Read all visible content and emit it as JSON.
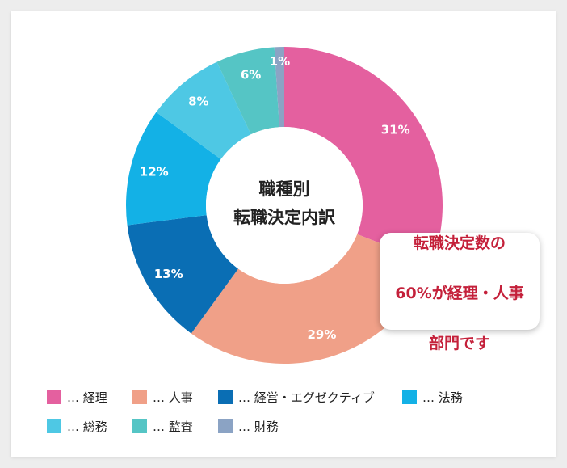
{
  "chart_data": {
    "type": "pie",
    "style": "donut",
    "center_label": [
      "職種別",
      "転職決定内訳"
    ],
    "slices": [
      {
        "name": "経理",
        "value": 31,
        "label": "31%",
        "color": "#e4609f"
      },
      {
        "name": "人事",
        "value": 29,
        "label": "29%",
        "color": "#f0a088"
      },
      {
        "name": "経営・エグゼクティブ",
        "value": 13,
        "label": "13%",
        "color": "#0a6eb4"
      },
      {
        "name": "法務",
        "value": 12,
        "label": "12%",
        "color": "#13b1e6"
      },
      {
        "name": "総務",
        "value": 8,
        "label": "8%",
        "color": "#4ec8e4"
      },
      {
        "name": "監査",
        "value": 6,
        "label": "6%",
        "color": "#55c5c5"
      },
      {
        "name": "財務",
        "value": 1,
        "label": "1%",
        "color": "#8ba3c4"
      }
    ],
    "legend_prefix": "… ",
    "legend_position": "bottom"
  },
  "callout": {
    "lines": [
      "転職決定数の",
      "60%が経理・人事",
      "部門です"
    ]
  }
}
